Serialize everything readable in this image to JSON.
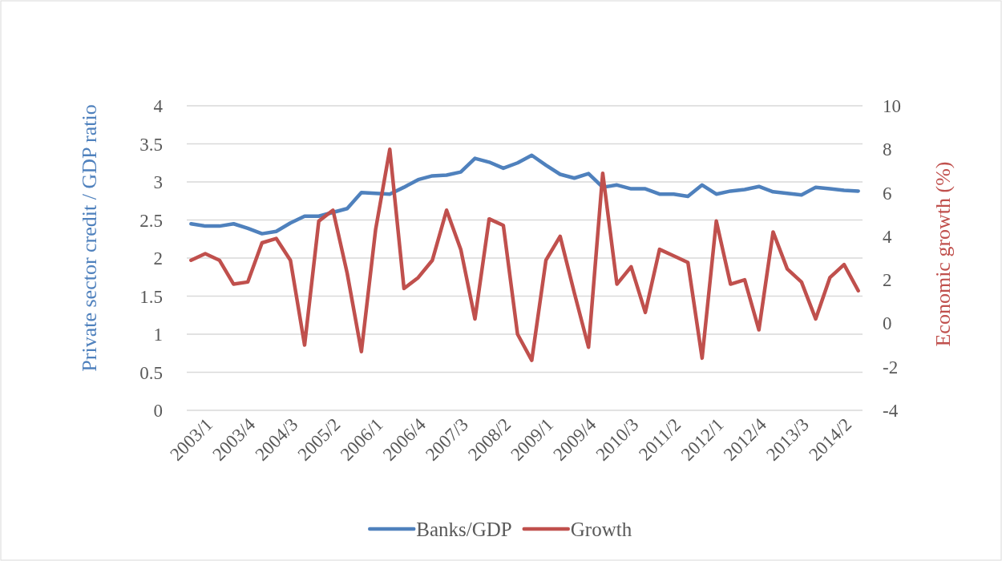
{
  "chart_data": {
    "type": "line",
    "ylabel": "Private sector credit / GDP ratio",
    "y2label": "Economic growth (%)",
    "categories": [
      "2003/1",
      null,
      null,
      "2003/4",
      null,
      null,
      "2004/3",
      null,
      null,
      "2005/2",
      null,
      null,
      "2006/1",
      null,
      null,
      "2006/4",
      null,
      null,
      "2007/3",
      null,
      null,
      "2008/2",
      null,
      null,
      "2009/1",
      null,
      null,
      "2009/4",
      null,
      null,
      "2010/3",
      null,
      null,
      "2011/2",
      null,
      null,
      "2012/1",
      null,
      null,
      "2012/4",
      null,
      null,
      "2013/3",
      null,
      null,
      "2014/2",
      null,
      null
    ],
    "series": [
      {
        "name": "Banks/GDP",
        "color": "#4f81bd",
        "values": [
          2.45,
          2.42,
          2.42,
          2.45,
          2.39,
          2.32,
          2.35,
          2.46,
          2.55,
          2.55,
          2.6,
          2.65,
          2.86,
          2.85,
          2.84,
          2.93,
          3.03,
          3.08,
          3.09,
          3.13,
          3.31,
          3.26,
          3.18,
          3.25,
          3.35,
          3.22,
          3.1,
          3.05,
          3.11,
          2.93,
          2.96,
          2.91,
          2.91,
          2.84,
          2.84,
          2.81,
          2.96,
          2.84,
          2.88,
          2.9,
          2.94,
          2.87,
          2.85,
          2.83,
          2.93,
          2.91,
          2.89,
          2.88
        ]
      },
      {
        "name": "Growth",
        "color": "#c0504d",
        "axis": "y2",
        "values": [
          2.9,
          3.2,
          2.9,
          1.8,
          1.9,
          3.7,
          3.9,
          2.9,
          -1.0,
          4.7,
          5.2,
          2.3,
          -1.3,
          4.3,
          8.0,
          1.6,
          2.1,
          2.9,
          5.2,
          3.4,
          0.2,
          4.8,
          4.5,
          -0.5,
          -1.7,
          2.9,
          4.0,
          1.4,
          -1.1,
          6.9,
          1.8,
          2.6,
          0.5,
          3.4,
          3.1,
          2.8,
          -1.6,
          4.7,
          1.8,
          2.0,
          -0.3,
          4.2,
          2.5,
          1.9,
          0.2,
          2.1,
          2.7,
          1.5
        ]
      }
    ],
    "ylim": [
      0,
      4
    ],
    "yticks": [
      0,
      0.5,
      1,
      1.5,
      2,
      2.5,
      3,
      3.5,
      4
    ],
    "y2lim": [
      -4,
      10
    ],
    "y2ticks": [
      -4,
      -2,
      0,
      2,
      4,
      6,
      8,
      10
    ],
    "grid": "y",
    "legend": "bottom",
    "line_style": "solid",
    "marker": "none"
  }
}
